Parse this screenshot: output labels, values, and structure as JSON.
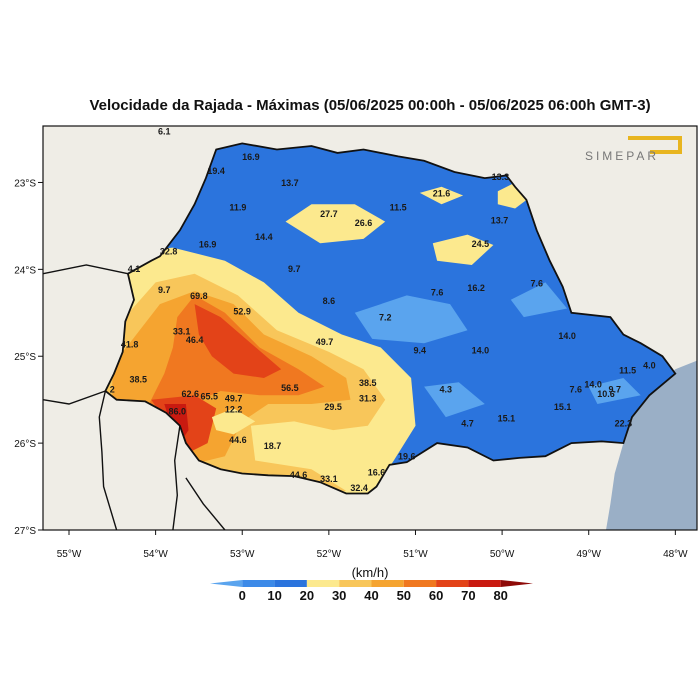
{
  "title": "Velocidade da Rajada - Máximas (05/06/2025 00:00h - 05/06/2025 06:00h GMT-3)",
  "logo_text": "SIMEPAR",
  "colorbar": {
    "unit": "(km/h)",
    "ticks": [
      "0",
      "10",
      "20",
      "30",
      "40",
      "50",
      "60",
      "70",
      "80"
    ],
    "colors": [
      "#5aa4ee",
      "#3c8ae8",
      "#2b74dd",
      "#fce98e",
      "#f8c65a",
      "#f5a430",
      "#f07820",
      "#e34318",
      "#c91a10",
      "#8e0a08"
    ]
  },
  "axes": {
    "lon_labels": [
      "55°W",
      "54°W",
      "53°W",
      "52°W",
      "51°W",
      "50°W",
      "49°W",
      "48°W"
    ],
    "lat_labels": [
      "23°S",
      "24°S",
      "25°S",
      "26°S",
      "27°S"
    ]
  },
  "colors": {
    "land": "#efede6",
    "ocean": "#9aafc6",
    "border": "#111111"
  },
  "values": [
    {
      "text": "6.1",
      "lon": -53.9,
      "lat": -22.45
    },
    {
      "text": "16.9",
      "lon": -52.9,
      "lat": -22.74
    },
    {
      "text": "19.4",
      "lon": -53.3,
      "lat": -22.9
    },
    {
      "text": "13.7",
      "lon": -52.45,
      "lat": -23.04
    },
    {
      "text": "11.9",
      "lon": -53.05,
      "lat": -23.32
    },
    {
      "text": "27.7",
      "lon": -52.0,
      "lat": -23.4
    },
    {
      "text": "26.6",
      "lon": -51.6,
      "lat": -23.5
    },
    {
      "text": "11.5",
      "lon": -51.2,
      "lat": -23.32
    },
    {
      "text": "21.6",
      "lon": -50.7,
      "lat": -23.16
    },
    {
      "text": "13.3",
      "lon": -50.02,
      "lat": -22.97
    },
    {
      "text": "13.7",
      "lon": -50.03,
      "lat": -23.47
    },
    {
      "text": "14.4",
      "lon": -52.75,
      "lat": -23.66
    },
    {
      "text": "16.9",
      "lon": -53.4,
      "lat": -23.75
    },
    {
      "text": "24.5",
      "lon": -50.25,
      "lat": -23.74
    },
    {
      "text": "32.8",
      "lon": -53.85,
      "lat": -23.83
    },
    {
      "text": "9.7",
      "lon": -52.4,
      "lat": -24.03
    },
    {
      "text": "4.1",
      "lon": -54.25,
      "lat": -24.03
    },
    {
      "text": "9.7",
      "lon": -53.9,
      "lat": -24.27
    },
    {
      "text": "69.8",
      "lon": -53.5,
      "lat": -24.34
    },
    {
      "text": "8.6",
      "lon": -52.0,
      "lat": -24.4
    },
    {
      "text": "7.6",
      "lon": -50.75,
      "lat": -24.3
    },
    {
      "text": "16.2",
      "lon": -50.3,
      "lat": -24.25
    },
    {
      "text": "7.6",
      "lon": -49.6,
      "lat": -24.2
    },
    {
      "text": "52.9",
      "lon": -53.0,
      "lat": -24.52
    },
    {
      "text": "7.2",
      "lon": -51.35,
      "lat": -24.59
    },
    {
      "text": "33.1",
      "lon": -53.7,
      "lat": -24.75
    },
    {
      "text": "46.4",
      "lon": -53.55,
      "lat": -24.85
    },
    {
      "text": "41.8",
      "lon": -54.3,
      "lat": -24.9
    },
    {
      "text": "49.7",
      "lon": -52.05,
      "lat": -24.87
    },
    {
      "text": "9.4",
      "lon": -50.95,
      "lat": -24.97
    },
    {
      "text": "14.0",
      "lon": -50.25,
      "lat": -24.97
    },
    {
      "text": "14.0",
      "lon": -49.25,
      "lat": -24.8
    },
    {
      "text": "11.5",
      "lon": -48.55,
      "lat": -25.2
    },
    {
      "text": "4.0",
      "lon": -48.3,
      "lat": -25.14
    },
    {
      "text": "38.5",
      "lon": -54.2,
      "lat": -25.3
    },
    {
      "text": "56.5",
      "lon": -52.45,
      "lat": -25.4
    },
    {
      "text": "38.5",
      "lon": -51.55,
      "lat": -25.34
    },
    {
      "text": "14.0",
      "lon": -48.95,
      "lat": -25.36
    },
    {
      "text": "7.6",
      "lon": -49.15,
      "lat": -25.42
    },
    {
      "text": "9.7",
      "lon": -48.7,
      "lat": -25.42
    },
    {
      "text": "10.6",
      "lon": -48.8,
      "lat": -25.47
    },
    {
      "text": "2",
      "lon": -54.5,
      "lat": -25.42
    },
    {
      "text": "62.6",
      "lon": -53.6,
      "lat": -25.47
    },
    {
      "text": "65.5",
      "lon": -53.38,
      "lat": -25.5
    },
    {
      "text": "49.7",
      "lon": -53.1,
      "lat": -25.52
    },
    {
      "text": "31.3",
      "lon": -51.55,
      "lat": -25.52
    },
    {
      "text": "4.3",
      "lon": -50.65,
      "lat": -25.42
    },
    {
      "text": "15.1",
      "lon": -49.3,
      "lat": -25.62
    },
    {
      "text": "29.5",
      "lon": -51.95,
      "lat": -25.62
    },
    {
      "text": "12.2",
      "lon": -53.1,
      "lat": -25.65
    },
    {
      "text": "86.0",
      "lon": -53.75,
      "lat": -25.67
    },
    {
      "text": "4.7",
      "lon": -50.4,
      "lat": -25.81
    },
    {
      "text": "15.1",
      "lon": -49.95,
      "lat": -25.75
    },
    {
      "text": "22.3",
      "lon": -48.6,
      "lat": -25.81
    },
    {
      "text": "44.6",
      "lon": -53.05,
      "lat": -26.0
    },
    {
      "text": "18.7",
      "lon": -52.65,
      "lat": -26.07
    },
    {
      "text": "19.6",
      "lon": -51.1,
      "lat": -26.19
    },
    {
      "text": "16.6",
      "lon": -51.45,
      "lat": -26.37
    },
    {
      "text": "44.6",
      "lon": -52.35,
      "lat": -26.4
    },
    {
      "text": "33.1",
      "lon": -52.0,
      "lat": -26.45
    },
    {
      "text": "32.4",
      "lon": -51.65,
      "lat": -26.55
    }
  ]
}
